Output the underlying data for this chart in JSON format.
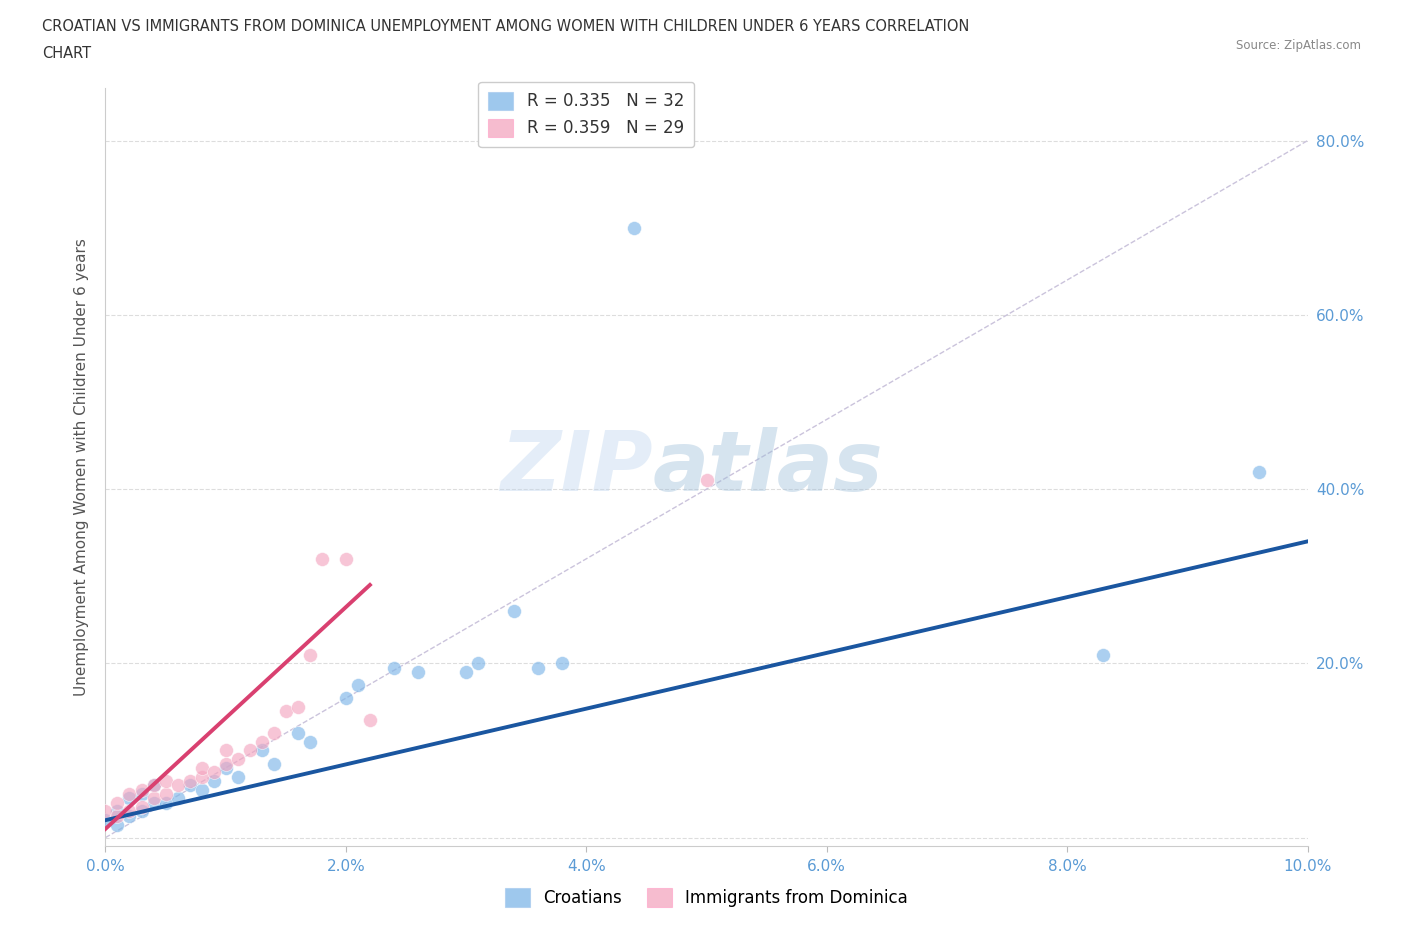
{
  "title_line1": "CROATIAN VS IMMIGRANTS FROM DOMINICA UNEMPLOYMENT AMONG WOMEN WITH CHILDREN UNDER 6 YEARS CORRELATION",
  "title_line2": "CHART",
  "source": "Source: ZipAtlas.com",
  "ylabel": "Unemployment Among Women with Children Under 6 years",
  "xlim": [
    0.0,
    0.1
  ],
  "ylim": [
    -0.01,
    0.86
  ],
  "xticks": [
    0.0,
    0.02,
    0.04,
    0.06,
    0.08,
    0.1
  ],
  "xtick_labels": [
    "0.0%",
    "2.0%",
    "4.0%",
    "6.0%",
    "8.0%",
    "10.0%"
  ],
  "yticks": [
    0.0,
    0.2,
    0.4,
    0.6,
    0.8
  ],
  "ytick_labels": [
    "",
    "20.0%",
    "40.0%",
    "60.0%",
    "80.0%"
  ],
  "legend_r1": "R = 0.335",
  "legend_n1": "N = 32",
  "legend_r2": "R = 0.359",
  "legend_n2": "N = 29",
  "blue_color": "#7EB6E8",
  "pink_color": "#F4A6C0",
  "blue_line_color": "#1A56A0",
  "pink_line_color": "#D94070",
  "diagonal_color": "#C5BDD8",
  "axis_label_color": "#5B9BD5",
  "croatians_x": [
    0.0,
    0.001,
    0.001,
    0.002,
    0.002,
    0.003,
    0.003,
    0.004,
    0.004,
    0.005,
    0.006,
    0.007,
    0.008,
    0.009,
    0.01,
    0.011,
    0.013,
    0.014,
    0.016,
    0.017,
    0.02,
    0.021,
    0.024,
    0.026,
    0.03,
    0.031,
    0.034,
    0.036,
    0.038,
    0.044,
    0.083,
    0.096
  ],
  "croatians_y": [
    0.02,
    0.015,
    0.03,
    0.025,
    0.045,
    0.03,
    0.05,
    0.04,
    0.06,
    0.04,
    0.045,
    0.06,
    0.055,
    0.065,
    0.08,
    0.07,
    0.1,
    0.085,
    0.12,
    0.11,
    0.16,
    0.175,
    0.195,
    0.19,
    0.19,
    0.2,
    0.26,
    0.195,
    0.2,
    0.7,
    0.21,
    0.42
  ],
  "dominica_x": [
    0.0,
    0.001,
    0.001,
    0.002,
    0.002,
    0.003,
    0.003,
    0.004,
    0.004,
    0.005,
    0.005,
    0.006,
    0.007,
    0.008,
    0.008,
    0.009,
    0.01,
    0.01,
    0.011,
    0.012,
    0.013,
    0.014,
    0.015,
    0.016,
    0.017,
    0.018,
    0.02,
    0.022,
    0.05
  ],
  "dominica_y": [
    0.03,
    0.025,
    0.04,
    0.03,
    0.05,
    0.035,
    0.055,
    0.045,
    0.06,
    0.05,
    0.065,
    0.06,
    0.065,
    0.07,
    0.08,
    0.075,
    0.085,
    0.1,
    0.09,
    0.1,
    0.11,
    0.12,
    0.145,
    0.15,
    0.21,
    0.32,
    0.32,
    0.135,
    0.41
  ],
  "background_color": "#FFFFFF",
  "grid_color": "#DDDDDD",
  "blue_line_x0": 0.0,
  "blue_line_y0": 0.02,
  "blue_line_x1": 0.1,
  "blue_line_y1": 0.34,
  "pink_line_x0": 0.0,
  "pink_line_y0": 0.01,
  "pink_line_x1": 0.022,
  "pink_line_y1": 0.29
}
